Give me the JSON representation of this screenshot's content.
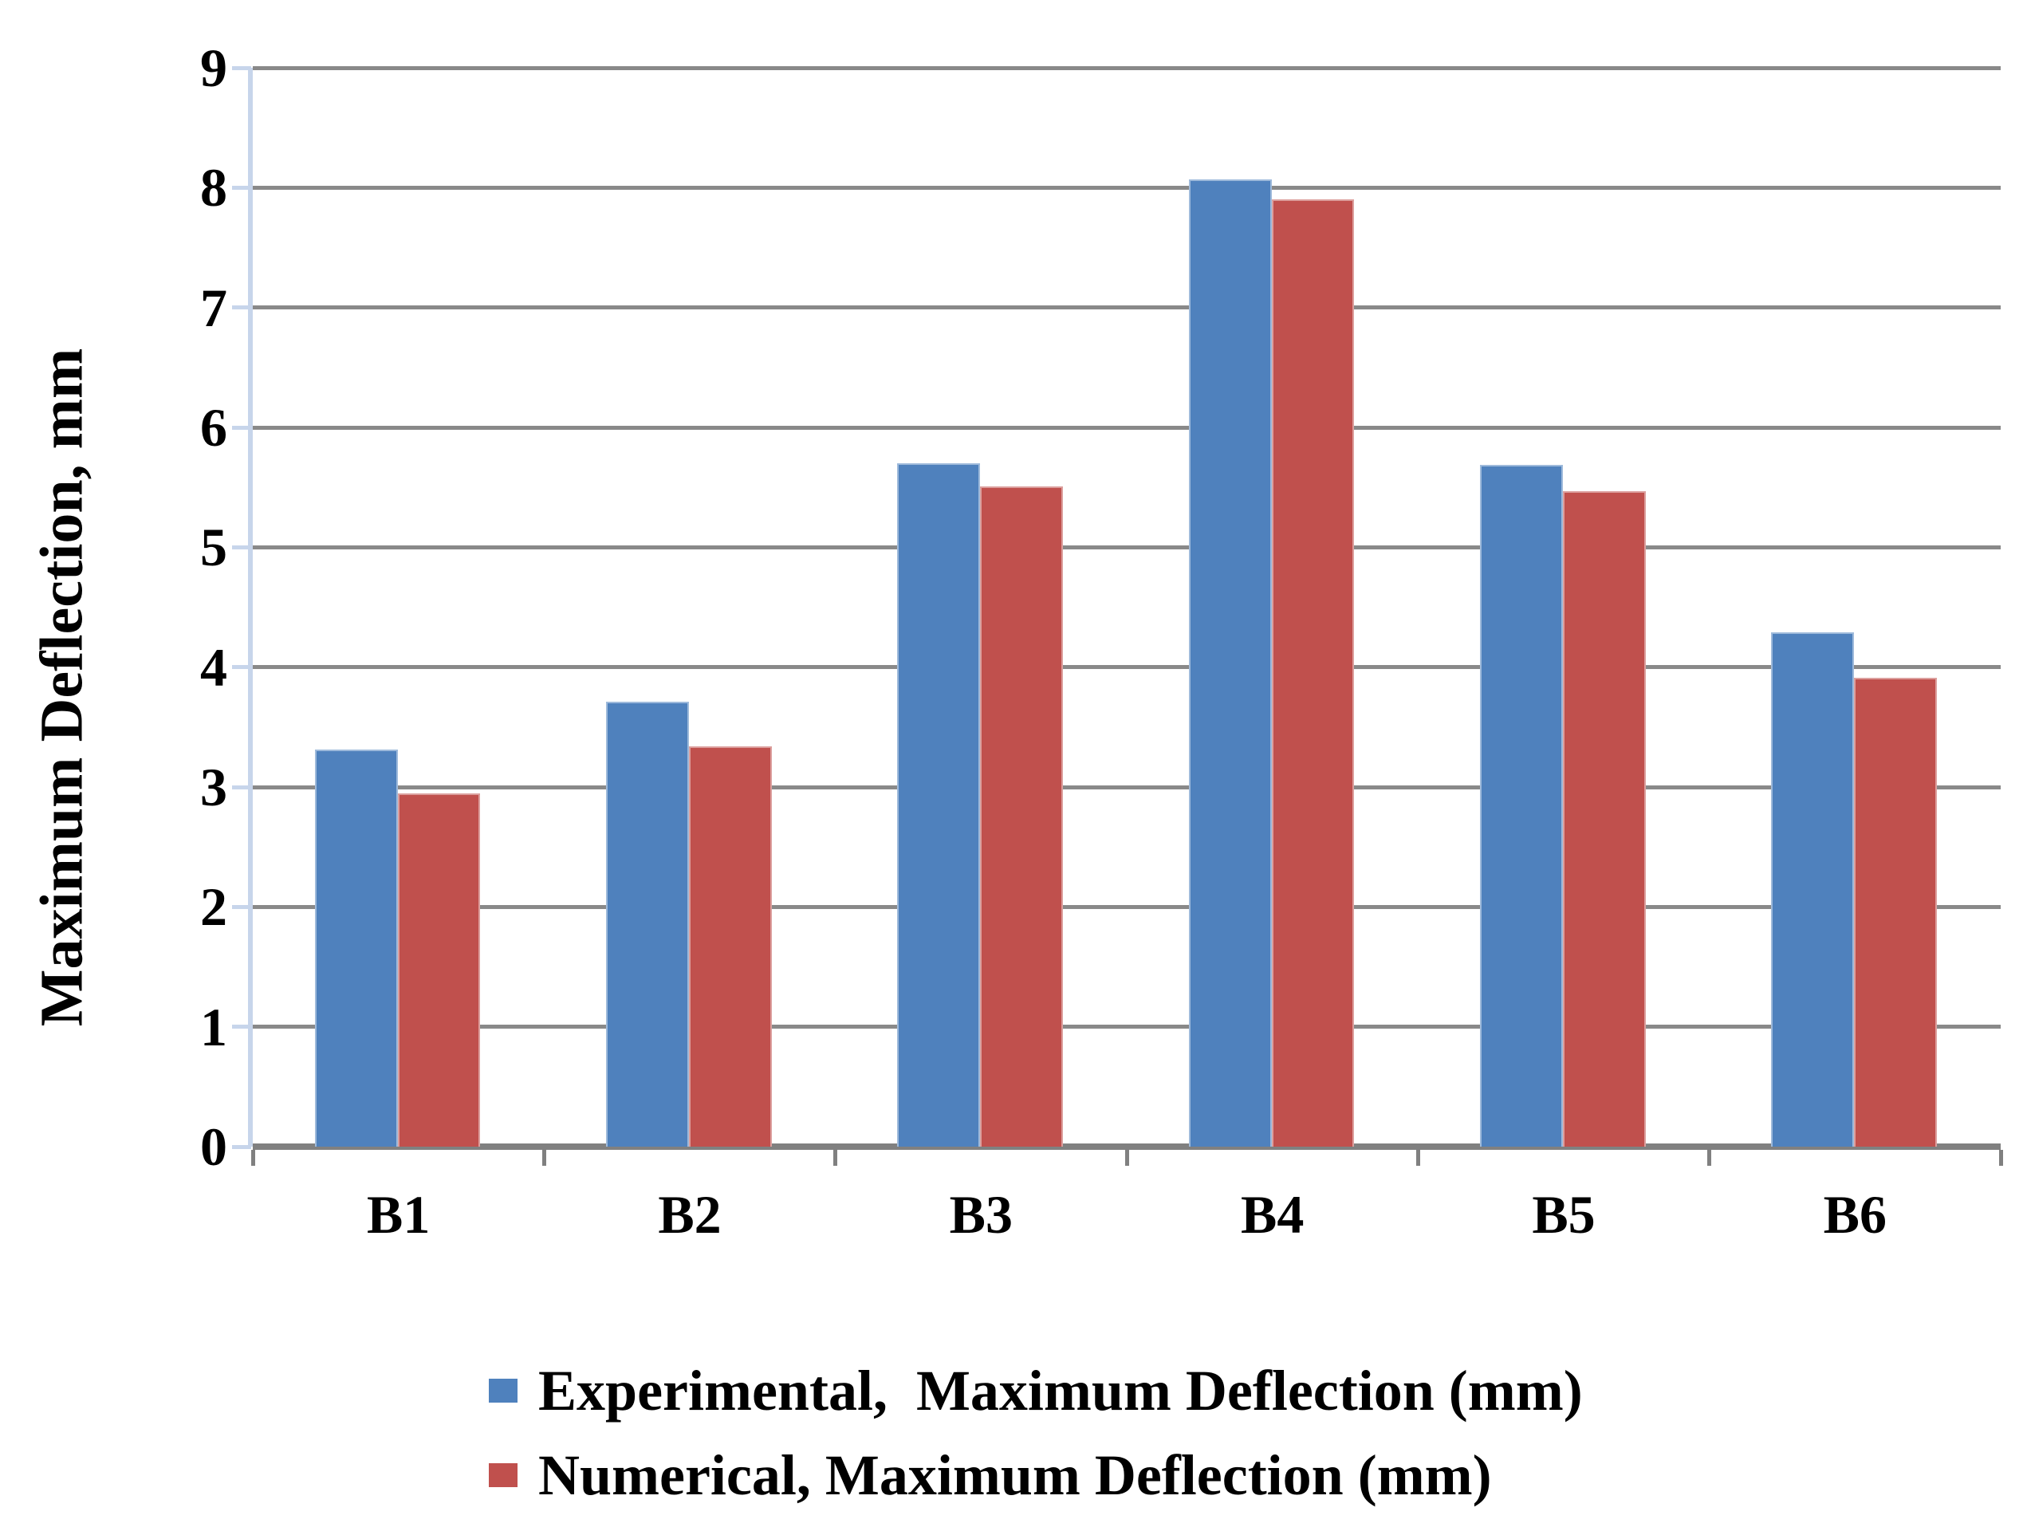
{
  "chart_data": {
    "type": "bar",
    "categories": [
      "B1",
      "B2",
      "B3",
      "B4",
      "B5",
      "B6"
    ],
    "series": [
      {
        "name": "Experimental,  Maximum Deflection (mm)",
        "color": "#4F81BD",
        "values": [
          3.31,
          3.71,
          5.7,
          8.07,
          5.69,
          4.29
        ]
      },
      {
        "name": "Numerical, Maximum Deflection (mm)",
        "color": "#C0504D",
        "values": [
          2.95,
          3.34,
          5.51,
          7.9,
          5.47,
          3.91
        ]
      }
    ],
    "xlabel": "",
    "ylabel": "Maximum Deflection, mm",
    "ylim": [
      0,
      9
    ],
    "yticks": [
      0,
      1,
      2,
      3,
      4,
      5,
      6,
      7,
      8,
      9
    ],
    "grid": true,
    "legend_position": "bottom-left"
  },
  "colors": {
    "experimental_bar": "#4F81BD",
    "numerical_bar": "#C0504D",
    "gridline": "#898989",
    "x_axis_line": "#808080",
    "y_axis_line": "#C7D5EB",
    "text": "#000000",
    "background": "#FFFFFF"
  }
}
